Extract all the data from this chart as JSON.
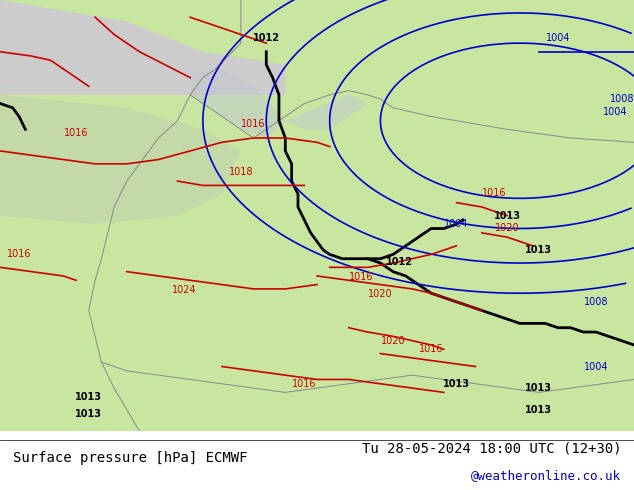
{
  "title_left": "Surface pressure [hPa] ECMWF",
  "title_right": "Tu 28-05-2024 18:00 UTC (12+30)",
  "watermark": "@weatheronline.co.uk",
  "background_map_color": "#c8e6a0",
  "land_light_color": "#c8e6a0",
  "sea_gray_color": "#d0d0d0",
  "contour_blue_color": "#0000cc",
  "contour_red_color": "#cc0000",
  "contour_black_color": "#000000",
  "text_color_black": "#000000",
  "text_color_blue": "#0000cc",
  "text_color_red": "#cc0000",
  "bottom_bar_color": "#ffffff",
  "label_fontsize": 9,
  "title_fontsize": 10,
  "watermark_color": "#0000cc"
}
